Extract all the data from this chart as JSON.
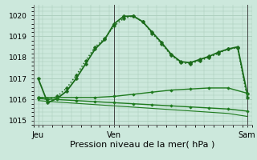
{
  "bg_color": "#cce8dc",
  "grid_color": "#aaccbb",
  "ylabel_ticks": [
    1015,
    1016,
    1017,
    1018,
    1019,
    1020
  ],
  "ylim": [
    1014.8,
    1020.5
  ],
  "xlim": [
    0,
    46
  ],
  "xtick_positions": [
    1,
    17,
    45
  ],
  "xtick_labels": [
    "Jeu",
    "Ven",
    "Sam"
  ],
  "xlabel": "Pression niveau de la mer( hPa )",
  "series": [
    {
      "x": [
        1,
        3,
        5,
        7,
        9,
        11,
        13,
        15,
        17,
        19,
        21,
        23,
        25,
        27,
        29,
        31,
        33,
        35,
        37,
        39,
        41,
        43,
        45
      ],
      "y": [
        1017.0,
        1015.85,
        1016.05,
        1016.4,
        1017.0,
        1017.7,
        1018.4,
        1018.85,
        1019.6,
        1019.95,
        1019.97,
        1019.7,
        1019.2,
        1018.7,
        1018.15,
        1017.8,
        1017.75,
        1017.9,
        1018.05,
        1018.25,
        1018.4,
        1018.5,
        1016.3
      ],
      "style": "-",
      "marker": "P",
      "markersize": 2.5,
      "lw": 1.3,
      "color": "#1a6b1a"
    },
    {
      "x": [
        1,
        3,
        5,
        7,
        9,
        11,
        13,
        15,
        17,
        19,
        21,
        23,
        25,
        27,
        29,
        31,
        33,
        35,
        37,
        39,
        41,
        43,
        45
      ],
      "y": [
        1016.1,
        1016.0,
        1016.15,
        1016.55,
        1017.15,
        1017.85,
        1018.5,
        1018.9,
        1019.5,
        1019.85,
        1019.97,
        1019.7,
        1019.15,
        1018.65,
        1018.1,
        1017.75,
        1017.7,
        1017.85,
        1018.0,
        1018.2,
        1018.4,
        1018.45,
        1016.1
      ],
      "style": ":",
      "marker": "P",
      "markersize": 2.5,
      "lw": 1.1,
      "color": "#1a6b1a"
    },
    {
      "x": [
        1,
        5,
        9,
        13,
        17,
        21,
        25,
        29,
        33,
        37,
        41,
        45
      ],
      "y": [
        1016.1,
        1016.1,
        1016.1,
        1016.1,
        1016.15,
        1016.25,
        1016.35,
        1016.45,
        1016.5,
        1016.55,
        1016.55,
        1016.3
      ],
      "style": "-",
      "marker": "P",
      "markersize": 2.0,
      "lw": 1.0,
      "color": "#1e7a1e"
    },
    {
      "x": [
        1,
        5,
        9,
        13,
        17,
        21,
        25,
        29,
        33,
        37,
        41,
        45
      ],
      "y": [
        1016.05,
        1016.0,
        1015.95,
        1015.9,
        1015.85,
        1015.8,
        1015.75,
        1015.7,
        1015.65,
        1015.6,
        1015.55,
        1015.45
      ],
      "style": "-",
      "marker": "P",
      "markersize": 2.0,
      "lw": 1.0,
      "color": "#1e7a1e"
    },
    {
      "x": [
        1,
        5,
        9,
        13,
        17,
        21,
        25,
        29,
        33,
        37,
        41,
        45
      ],
      "y": [
        1015.95,
        1015.88,
        1015.82,
        1015.76,
        1015.7,
        1015.64,
        1015.58,
        1015.52,
        1015.46,
        1015.4,
        1015.34,
        1015.2
      ],
      "style": "-",
      "marker": null,
      "markersize": 0,
      "lw": 0.8,
      "color": "#1e7a1e"
    }
  ],
  "vline_positions": [
    17,
    45
  ],
  "vline_color": "#444444",
  "vline_lw": 0.7,
  "ylabel_fontsize": 6.5,
  "xlabel_fontsize": 8,
  "xtick_fontsize": 7
}
